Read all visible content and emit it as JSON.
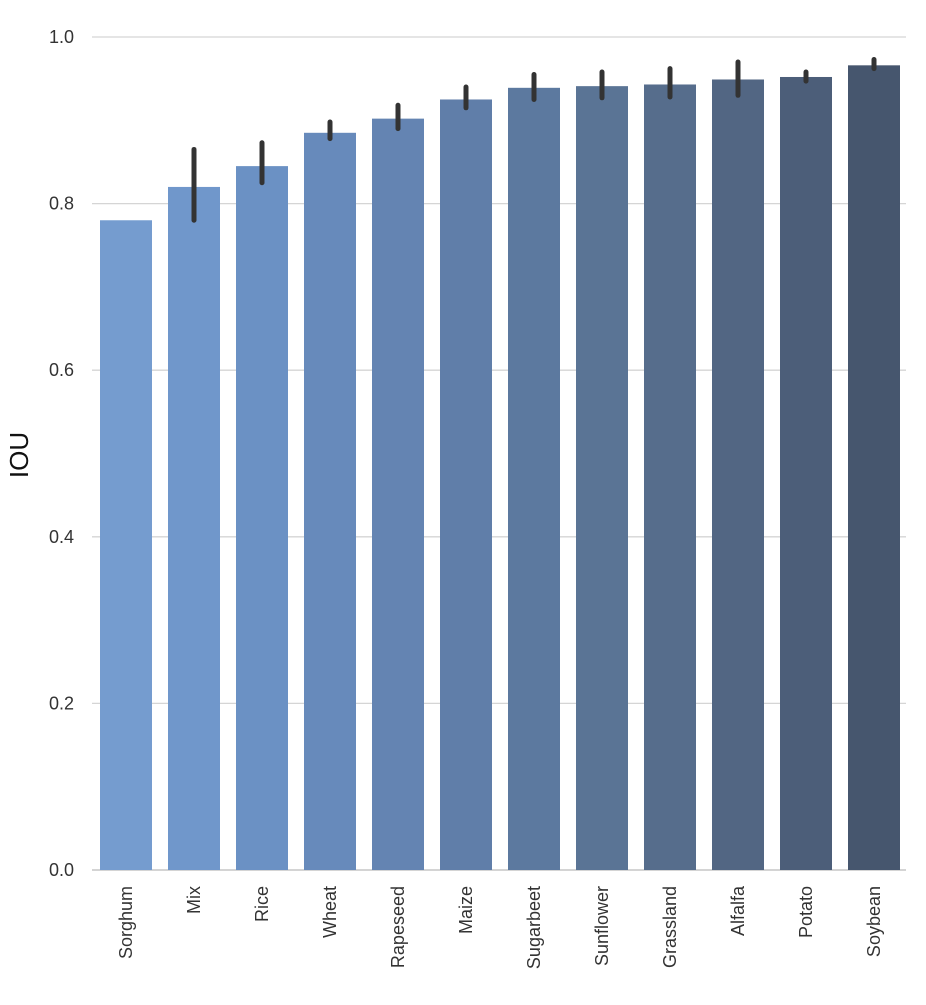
{
  "chart_data": {
    "type": "bar",
    "title": "",
    "xlabel": "",
    "ylabel": "IOU",
    "ylim": [
      0,
      1.0
    ],
    "yticks": [
      0.0,
      0.2,
      0.4,
      0.6,
      0.8,
      1.0
    ],
    "ytick_labels": [
      "0.0",
      "0.2",
      "0.4",
      "0.6",
      "0.8",
      "1.0"
    ],
    "grid": "horizontal",
    "categories": [
      "Sorghum",
      "Mix",
      "Rice",
      "Wheat",
      "Rapeseed",
      "Maize",
      "Sugarbeet",
      "Sunflower",
      "Grassland",
      "Alfalfa",
      "Potato",
      "Soybean"
    ],
    "values": [
      0.78,
      0.82,
      0.845,
      0.885,
      0.902,
      0.925,
      0.939,
      0.941,
      0.943,
      0.949,
      0.952,
      0.966
    ],
    "error_low": [
      null,
      0.78,
      0.825,
      0.878,
      0.89,
      0.915,
      0.925,
      0.927,
      0.928,
      0.93,
      0.947,
      0.962
    ],
    "error_high": [
      null,
      0.865,
      0.873,
      0.898,
      0.918,
      0.94,
      0.955,
      0.958,
      0.962,
      0.97,
      0.958,
      0.973
    ],
    "colors": [
      "#759ccf",
      "#7097cb",
      "#6b91c4",
      "#678abb",
      "#6484b2",
      "#607ea9",
      "#5c799f",
      "#5a7495",
      "#566d8c",
      "#526683",
      "#4c5e79",
      "#46566e"
    ],
    "error_bar_color": "#333333",
    "grid_color": "#d5d5d5"
  }
}
